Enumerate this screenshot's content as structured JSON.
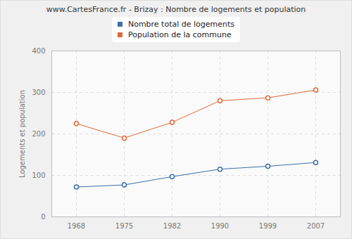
{
  "chart_data": {
    "type": "line",
    "title": "www.CartesFrance.fr - Brizay : Nombre de logements et population",
    "y_label": "Logements et population",
    "categories": [
      "1968",
      "1975",
      "1982",
      "1990",
      "1999",
      "2007"
    ],
    "series": [
      {
        "name": "Nombre total de logements",
        "color": "#3d6fa8",
        "values": [
          72,
          77,
          97,
          115,
          122,
          131
        ]
      },
      {
        "name": "Population de la commune",
        "color": "#e0693a",
        "values": [
          225,
          190,
          228,
          280,
          287,
          306
        ]
      }
    ],
    "ylim": [
      0,
      400
    ],
    "yticks": [
      0,
      100,
      200,
      300,
      400
    ],
    "grid": true,
    "legend": "top",
    "marker": "circle"
  }
}
